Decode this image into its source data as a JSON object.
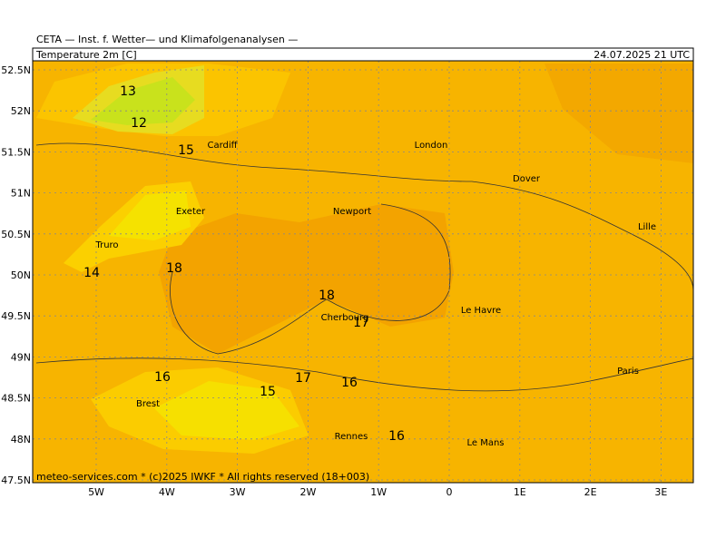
{
  "header": {
    "title": "CETA — Inst. f. Wetter— und Klimafolgenanalysen —",
    "field": "Temperature 2m [C]",
    "valid": "24.07.2025 21 UTC"
  },
  "map": {
    "lat_labels": [
      "52.5N",
      "52N",
      "51.5N",
      "51N",
      "50.5N",
      "50N",
      "49.5N",
      "49N",
      "48.5N",
      "48N",
      "47.5N"
    ],
    "lon_labels": [
      "5W",
      "4W",
      "3W",
      "2W",
      "1W",
      "0",
      "1E",
      "2E",
      "3E"
    ],
    "places": [
      "Cardiff",
      "London",
      "Dover",
      "Exeter",
      "Newport",
      "Lille",
      "Truro",
      "Cherbourg",
      "Le Havre",
      "Paris",
      "Brest",
      "Rennes",
      "Le Mans"
    ],
    "contour_labels": [
      13,
      12,
      15,
      14,
      18,
      18,
      17,
      16,
      17,
      15,
      16,
      16
    ],
    "footer": "meteo-services.com * (c)2025 IWKF * All rights reserved (18+003)"
  }
}
